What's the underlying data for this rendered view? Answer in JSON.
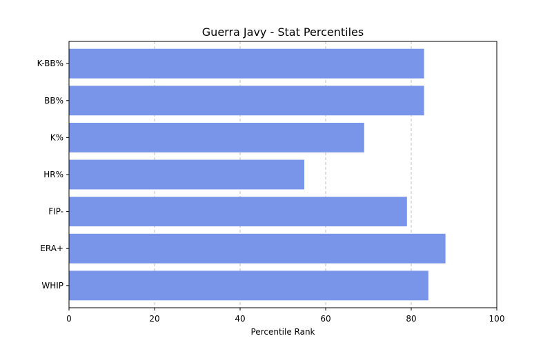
{
  "chart_data": {
    "type": "bar",
    "orientation": "horizontal",
    "title": "Guerra Javy - Stat Percentiles",
    "xlabel": "Percentile Rank",
    "ylabel": "",
    "categories": [
      "K-BB%",
      "BB%",
      "K%",
      "HR%",
      "FIP-",
      "ERA+",
      "WHIP"
    ],
    "values": [
      83,
      83,
      69,
      55,
      79,
      88,
      84
    ],
    "xlim": [
      0,
      100
    ],
    "xticks": [
      0,
      20,
      40,
      60,
      80,
      100
    ],
    "grid": "x-dashed",
    "bar_color": "#7995e9"
  }
}
